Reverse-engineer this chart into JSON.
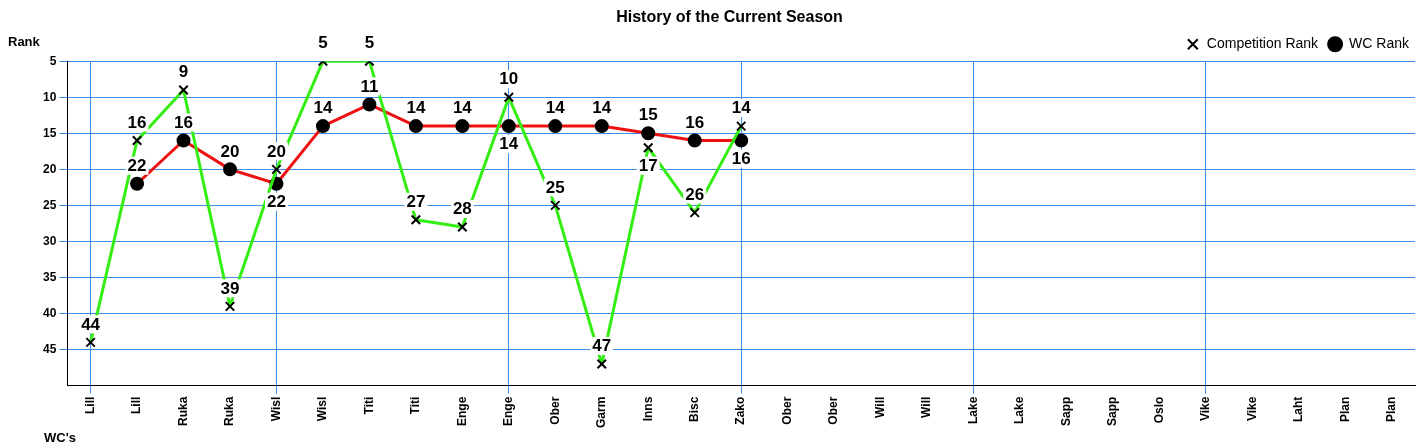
{
  "chart_data": {
    "type": "line",
    "title": "History of the Current Season",
    "xlabel": "WC's",
    "ylabel": "Rank",
    "categories": [
      "Lill",
      "Lill",
      "Ruka",
      "Ruka",
      "Wisl",
      "Wisl",
      "Titi",
      "Titi",
      "Enge",
      "Enge",
      "Ober",
      "Garm",
      "Inns",
      "Bisc",
      "Zako",
      "Ober",
      "Ober",
      "Will",
      "Will",
      "Lake",
      "Lake",
      "Sapp",
      "Sapp",
      "Oslo",
      "Vike",
      "Vike",
      "Laht",
      "Plan",
      "Plan"
    ],
    "series": [
      {
        "name": "Competition Rank",
        "color": "#33ee11",
        "marker": "cross",
        "values": [
          44,
          16,
          9,
          39,
          20,
          5,
          5,
          27,
          28,
          10,
          25,
          47,
          17,
          26,
          14,
          null,
          null,
          null,
          null,
          null,
          null,
          null,
          null,
          null,
          null,
          null,
          null,
          null,
          null
        ]
      },
      {
        "name": "WC Rank",
        "color": "#ee1111",
        "marker": "circle",
        "values": [
          null,
          22,
          16,
          20,
          22,
          14,
          11,
          14,
          14,
          14,
          14,
          14,
          15,
          16,
          16,
          null,
          null,
          null,
          null,
          null,
          null,
          null,
          null,
          null,
          null,
          null,
          null,
          null,
          null
        ]
      }
    ],
    "ylim": [
      50,
      5
    ],
    "yticks": [
      5,
      10,
      15,
      20,
      25,
      30,
      35,
      40,
      45
    ],
    "grid": true,
    "legend": "top right",
    "data_labels": true,
    "line_style": "solid"
  }
}
